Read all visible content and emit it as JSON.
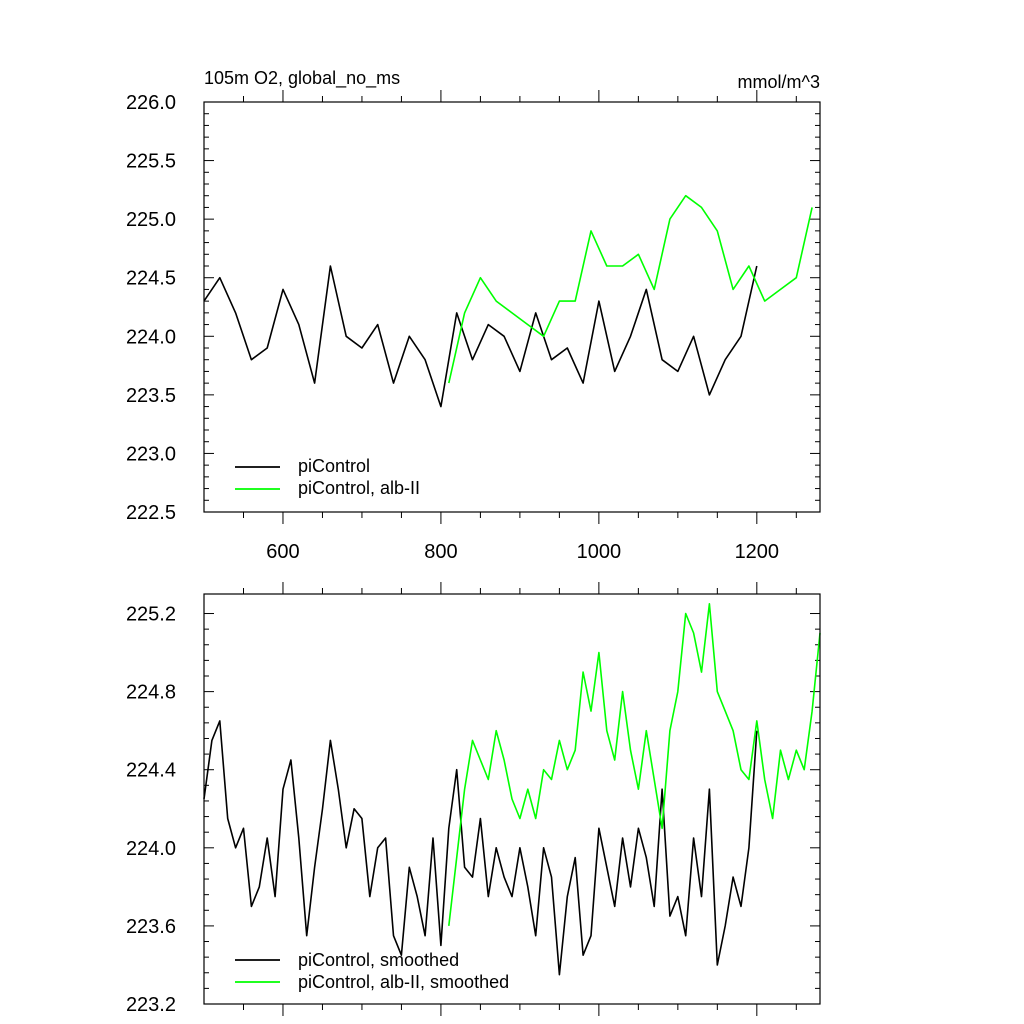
{
  "colors": {
    "control": "#000000",
    "alb": "#00ff00"
  },
  "chart_data": [
    {
      "type": "line",
      "title": "105m O2, global_no_ms",
      "units": "mmol/m^3",
      "xlim": [
        500,
        1280
      ],
      "ylim": [
        222.5,
        226.0
      ],
      "xticks": [
        "600",
        "800",
        "1000",
        "1200"
      ],
      "yticks": [
        "222.5",
        "223.0",
        "223.5",
        "224.0",
        "224.5",
        "225.0",
        "225.5",
        "226.0"
      ],
      "series": [
        {
          "name": "piControl",
          "color": "#000000",
          "x": [
            500,
            520,
            540,
            560,
            580,
            600,
            620,
            640,
            660,
            680,
            700,
            720,
            740,
            760,
            780,
            800,
            820,
            840,
            860,
            880,
            900,
            920,
            940,
            960,
            980,
            1000,
            1020,
            1040,
            1060,
            1080,
            1100,
            1120,
            1140,
            1160,
            1180,
            1200
          ],
          "y": [
            224.3,
            224.5,
            224.2,
            223.8,
            223.9,
            224.4,
            224.1,
            223.6,
            224.6,
            224.0,
            223.9,
            224.1,
            223.6,
            224.0,
            223.8,
            223.4,
            224.2,
            223.8,
            224.1,
            224.0,
            223.7,
            224.2,
            223.8,
            223.9,
            223.6,
            224.3,
            223.7,
            224.0,
            224.4,
            223.8,
            223.7,
            224.0,
            223.5,
            223.8,
            224.0,
            224.6
          ]
        },
        {
          "name": "piControl, alb-II",
          "color": "#00ff00",
          "x": [
            810,
            830,
            850,
            870,
            890,
            910,
            930,
            950,
            970,
            990,
            1010,
            1030,
            1050,
            1070,
            1090,
            1110,
            1130,
            1150,
            1170,
            1190,
            1210,
            1230,
            1250,
            1270
          ],
          "y": [
            223.6,
            224.2,
            224.5,
            224.3,
            224.2,
            224.1,
            224.0,
            224.3,
            224.3,
            224.9,
            224.6,
            224.6,
            224.7,
            224.4,
            225.0,
            225.2,
            225.1,
            224.9,
            224.4,
            224.6,
            224.3,
            224.4,
            224.5,
            225.1
          ]
        }
      ]
    },
    {
      "type": "line",
      "xlim": [
        500,
        1280
      ],
      "ylim": [
        223.2,
        225.3
      ],
      "yticks": [
        "223.2",
        "223.6",
        "224.0",
        "224.4",
        "224.8",
        "225.2"
      ],
      "series": [
        {
          "name": "piControl, smoothed",
          "color": "#000000",
          "x": [
            500,
            510,
            520,
            530,
            540,
            550,
            560,
            570,
            580,
            590,
            600,
            610,
            620,
            630,
            640,
            650,
            660,
            670,
            680,
            690,
            700,
            710,
            720,
            730,
            740,
            750,
            760,
            770,
            780,
            790,
            800,
            810,
            820,
            830,
            840,
            850,
            860,
            870,
            880,
            890,
            900,
            910,
            920,
            930,
            940,
            950,
            960,
            970,
            980,
            990,
            1000,
            1010,
            1020,
            1030,
            1040,
            1050,
            1060,
            1070,
            1080,
            1090,
            1100,
            1110,
            1120,
            1130,
            1140,
            1150,
            1160,
            1170,
            1180,
            1190,
            1200
          ],
          "y": [
            224.25,
            224.55,
            224.65,
            224.15,
            224.0,
            224.1,
            223.7,
            223.8,
            224.05,
            223.75,
            224.3,
            224.45,
            224.05,
            223.55,
            223.9,
            224.2,
            224.55,
            224.3,
            224.0,
            224.2,
            224.15,
            223.75,
            224.0,
            224.05,
            223.55,
            223.45,
            223.9,
            223.75,
            223.55,
            224.05,
            223.5,
            224.1,
            224.4,
            223.9,
            223.85,
            224.15,
            223.75,
            224.0,
            223.85,
            223.75,
            224.0,
            223.8,
            223.55,
            224.0,
            223.85,
            223.35,
            223.75,
            223.95,
            223.45,
            223.55,
            224.1,
            223.9,
            223.7,
            224.05,
            223.8,
            224.1,
            223.95,
            223.7,
            224.3,
            223.65,
            223.75,
            223.55,
            224.05,
            223.75,
            224.3,
            223.4,
            223.6,
            223.85,
            223.7,
            224.0,
            224.6
          ]
        },
        {
          "name": "piControl, alb-II, smoothed",
          "color": "#00ff00",
          "x": [
            810,
            820,
            830,
            840,
            850,
            860,
            870,
            880,
            890,
            900,
            910,
            920,
            930,
            940,
            950,
            960,
            970,
            980,
            990,
            1000,
            1010,
            1020,
            1030,
            1040,
            1050,
            1060,
            1070,
            1080,
            1090,
            1100,
            1110,
            1120,
            1130,
            1140,
            1150,
            1160,
            1170,
            1180,
            1190,
            1200,
            1210,
            1220,
            1230,
            1240,
            1250,
            1260,
            1270,
            1280
          ],
          "y": [
            223.6,
            223.95,
            224.3,
            224.55,
            224.45,
            224.35,
            224.6,
            224.45,
            224.25,
            224.15,
            224.3,
            224.15,
            224.4,
            224.35,
            224.55,
            224.4,
            224.5,
            224.9,
            224.7,
            225.0,
            224.6,
            224.45,
            224.8,
            224.5,
            224.3,
            224.6,
            224.35,
            224.1,
            224.6,
            224.8,
            225.2,
            225.1,
            224.9,
            225.25,
            224.8,
            224.7,
            224.6,
            224.4,
            224.35,
            224.65,
            224.35,
            224.15,
            224.5,
            224.35,
            224.5,
            224.4,
            224.7,
            225.1
          ]
        }
      ]
    }
  ]
}
